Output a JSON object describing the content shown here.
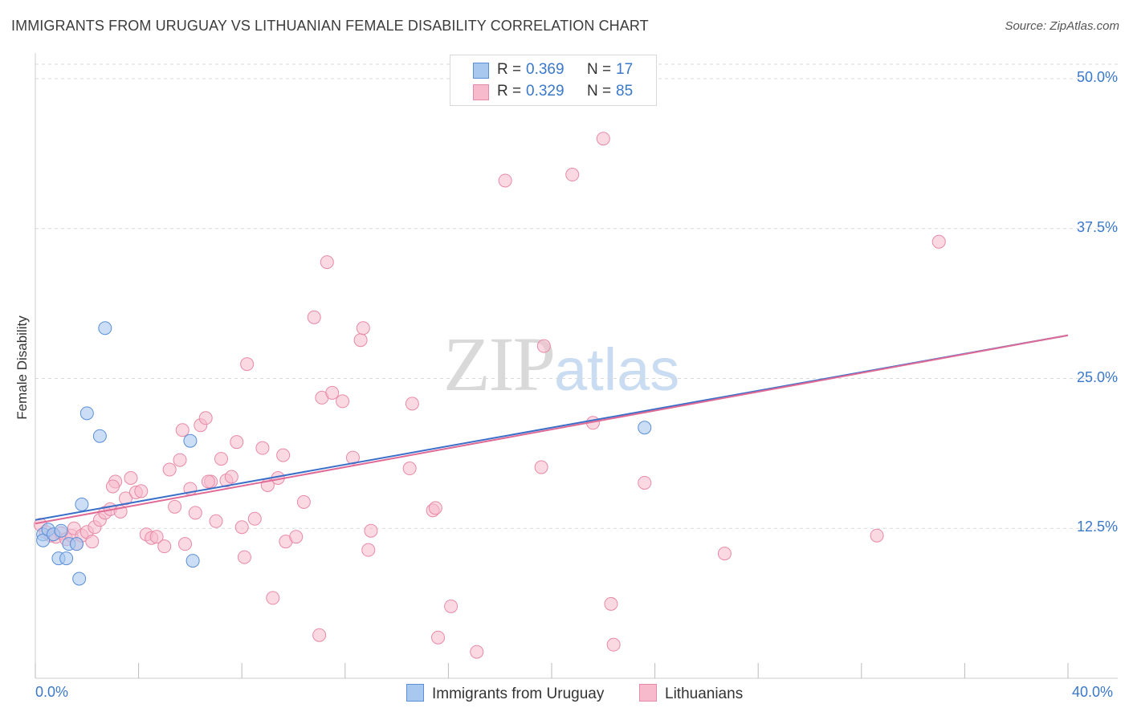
{
  "header": {
    "title": "IMMIGRANTS FROM URUGUAY VS LITHUANIAN FEMALE DISABILITY CORRELATION CHART",
    "source": "Source: ZipAtlas.com"
  },
  "watermark": {
    "zip": "ZIP",
    "atlas": "atlas"
  },
  "legend": {
    "rows": [
      {
        "r_label": "R =",
        "r_value": "0.369",
        "n_label": "N =",
        "n_value": "17"
      },
      {
        "r_label": "R =",
        "r_value": "0.329",
        "n_label": "N =",
        "n_value": "85"
      }
    ]
  },
  "bottom_legend": {
    "series1": "Immigrants from Uruguay",
    "series2": "Lithuanians"
  },
  "axis": {
    "x_min_label": "0.0%",
    "x_max_label": "40.0%",
    "y_ticks": [
      "50.0%",
      "37.5%",
      "25.0%",
      "12.5%"
    ],
    "ylabel": "Female Disability"
  },
  "colors": {
    "blue_fill": "#a9c8f0",
    "blue_stroke": "#5b8fd6",
    "blue_line": "#3a6fc9",
    "pink_fill": "#f7b9cc",
    "pink_stroke": "#e78aa8",
    "pink_line": "#e06a95",
    "grid": "#d9d9d9",
    "tick_text": "#3a78c9"
  },
  "chart_data": {
    "type": "scatter",
    "title": "IMMIGRANTS FROM URUGUAY VS LITHUANIAN FEMALE DISABILITY CORRELATION CHART",
    "xlabel": "",
    "ylabel": "Female Disability",
    "xlim": [
      0,
      40
    ],
    "ylim": [
      0,
      50
    ],
    "y_ticks": [
      12.5,
      25.0,
      37.5,
      50.0
    ],
    "series": [
      {
        "name": "Immigrants from Uruguay",
        "R": 0.369,
        "N": 17,
        "trend": {
          "x": [
            0,
            40
          ],
          "y": [
            13.2,
            28.6
          ]
        },
        "points": [
          [
            0.3,
            12.0
          ],
          [
            0.3,
            11.5
          ],
          [
            0.5,
            12.4
          ],
          [
            0.7,
            12.0
          ],
          [
            0.9,
            10.0
          ],
          [
            1.0,
            12.3
          ],
          [
            1.2,
            10.0
          ],
          [
            1.3,
            11.2
          ],
          [
            1.6,
            11.2
          ],
          [
            1.7,
            8.3
          ],
          [
            1.8,
            14.5
          ],
          [
            2.0,
            22.1
          ],
          [
            2.5,
            20.2
          ],
          [
            2.7,
            29.2
          ],
          [
            6.0,
            19.8
          ],
          [
            6.1,
            9.8
          ],
          [
            23.6,
            20.9
          ]
        ]
      },
      {
        "name": "Lithuanians",
        "R": 0.329,
        "N": 85,
        "trend": {
          "x": [
            0,
            40
          ],
          "y": [
            12.9,
            28.6
          ]
        },
        "points": [
          [
            0.2,
            12.8
          ],
          [
            0.4,
            12.2
          ],
          [
            0.6,
            11.9
          ],
          [
            0.8,
            11.8
          ],
          [
            1.0,
            12.1
          ],
          [
            1.2,
            11.6
          ],
          [
            1.4,
            11.9
          ],
          [
            1.5,
            12.5
          ],
          [
            1.6,
            11.2
          ],
          [
            1.8,
            11.9
          ],
          [
            2.0,
            12.2
          ],
          [
            2.2,
            11.4
          ],
          [
            2.3,
            12.6
          ],
          [
            2.5,
            13.2
          ],
          [
            2.7,
            13.8
          ],
          [
            2.9,
            14.1
          ],
          [
            3.1,
            16.4
          ],
          [
            3.3,
            13.9
          ],
          [
            3.5,
            15.0
          ],
          [
            3.7,
            16.7
          ],
          [
            3.9,
            15.5
          ],
          [
            4.1,
            15.6
          ],
          [
            4.3,
            12.0
          ],
          [
            4.5,
            11.7
          ],
          [
            4.7,
            11.8
          ],
          [
            5.0,
            11.0
          ],
          [
            5.2,
            17.4
          ],
          [
            5.4,
            14.3
          ],
          [
            5.6,
            18.2
          ],
          [
            5.7,
            20.7
          ],
          [
            5.8,
            11.2
          ],
          [
            6.0,
            15.8
          ],
          [
            6.2,
            13.8
          ],
          [
            6.4,
            21.1
          ],
          [
            6.6,
            21.7
          ],
          [
            6.8,
            16.4
          ],
          [
            7.0,
            13.1
          ],
          [
            7.2,
            18.3
          ],
          [
            7.4,
            16.5
          ],
          [
            7.6,
            16.8
          ],
          [
            7.8,
            19.7
          ],
          [
            8.0,
            12.6
          ],
          [
            8.1,
            10.1
          ],
          [
            8.2,
            26.2
          ],
          [
            8.5,
            13.3
          ],
          [
            8.8,
            19.2
          ],
          [
            9.0,
            16.1
          ],
          [
            9.2,
            6.7
          ],
          [
            9.4,
            16.7
          ],
          [
            9.6,
            18.6
          ],
          [
            9.7,
            11.4
          ],
          [
            10.1,
            11.8
          ],
          [
            10.4,
            14.7
          ],
          [
            10.8,
            30.1
          ],
          [
            11.0,
            3.6
          ],
          [
            11.1,
            23.4
          ],
          [
            11.3,
            34.7
          ],
          [
            11.5,
            23.8
          ],
          [
            11.9,
            23.1
          ],
          [
            12.3,
            18.4
          ],
          [
            12.6,
            28.2
          ],
          [
            12.7,
            29.2
          ],
          [
            12.9,
            10.7
          ],
          [
            13.0,
            12.3
          ],
          [
            14.5,
            17.5
          ],
          [
            14.6,
            22.9
          ],
          [
            15.4,
            14.0
          ],
          [
            15.5,
            14.2
          ],
          [
            15.6,
            3.4
          ],
          [
            16.1,
            6.0
          ],
          [
            17.1,
            2.2
          ],
          [
            18.2,
            41.5
          ],
          [
            19.6,
            17.6
          ],
          [
            19.7,
            27.7
          ],
          [
            20.8,
            42.0
          ],
          [
            21.6,
            21.3
          ],
          [
            22.0,
            45.0
          ],
          [
            22.3,
            6.2
          ],
          [
            22.4,
            2.8
          ],
          [
            23.6,
            16.3
          ],
          [
            26.7,
            10.4
          ],
          [
            32.6,
            11.9
          ],
          [
            35.0,
            36.4
          ],
          [
            3.0,
            16.0
          ],
          [
            6.7,
            16.4
          ]
        ]
      }
    ]
  }
}
